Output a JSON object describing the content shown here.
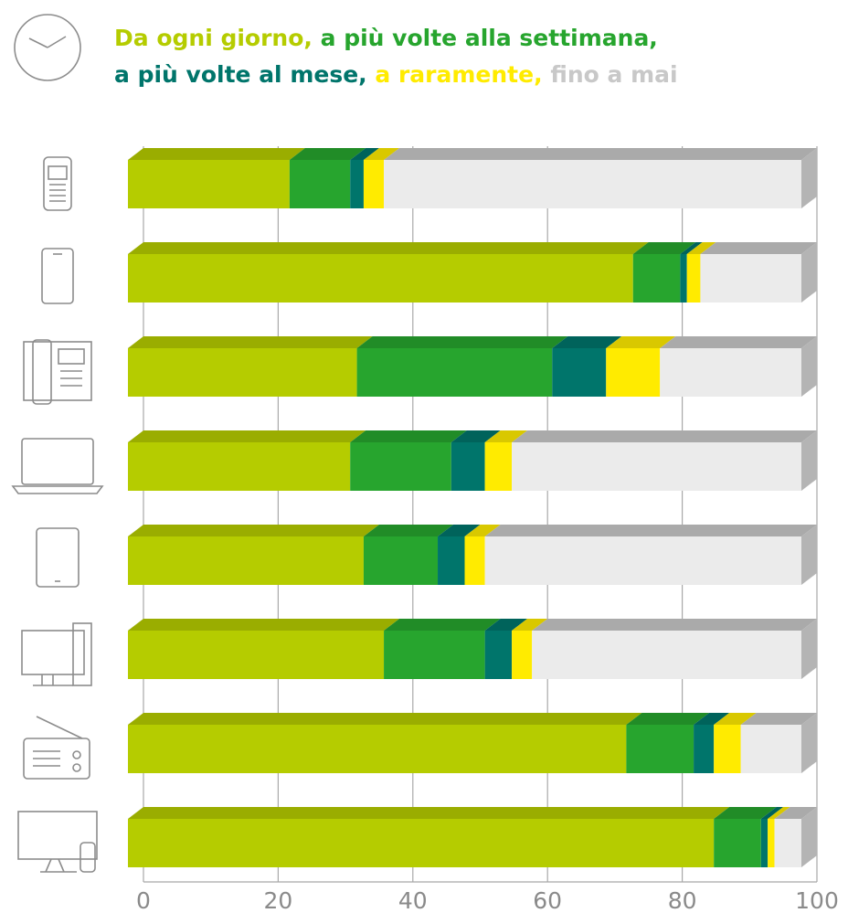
{
  "chart_data": {
    "type": "stacked-bar-3d",
    "categories": [
      null,
      null,
      null,
      null,
      null,
      null,
      null,
      null
    ],
    "series": [
      {
        "name": "Da ogni giorno,",
        "color": "#b5cc00",
        "values": [
          24,
          75,
          34,
          33,
          35,
          38,
          74,
          87
        ]
      },
      {
        "name": "a più volte alla settimana,",
        "color": "#27a52e",
        "values": [
          9,
          7,
          29,
          15,
          11,
          15,
          10,
          7
        ]
      },
      {
        "name": "a più volte al mese,",
        "color": "#00756b",
        "values": [
          2,
          1,
          8,
          5,
          4,
          4,
          3,
          1
        ]
      },
      {
        "name": "a raramente,",
        "color": "#ffeb00",
        "values": [
          3,
          2,
          8,
          4,
          3,
          3,
          4,
          1
        ]
      },
      {
        "name": "fino a mai",
        "color": "#c8c8c8",
        "values": [
          62,
          15,
          21,
          43,
          47,
          40,
          9,
          4
        ]
      }
    ],
    "xlim": [
      0,
      100
    ],
    "xticks": [
      0,
      20,
      40,
      60,
      80,
      100
    ],
    "grid": true
  }
}
